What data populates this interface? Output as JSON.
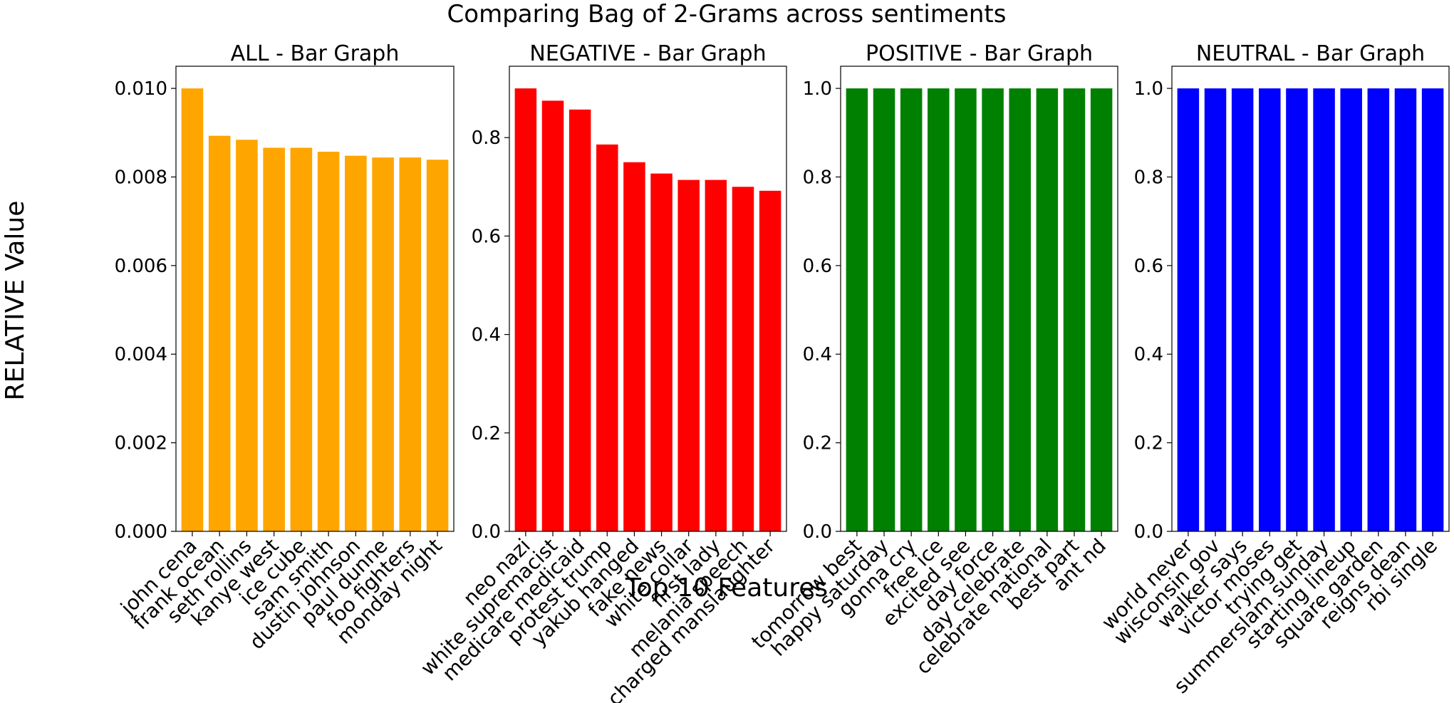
{
  "figure": {
    "suptitle": "Comparing Bag of 2-Grams across sentiments",
    "ylabel": "RELATIVE Value",
    "xlabel": "Top 10 Features"
  },
  "chart_data": [
    {
      "type": "bar",
      "title": "ALL - Bar Graph",
      "color": "#ffa500",
      "categories": [
        "john cena",
        "frank ocean",
        "seth rollins",
        "kanye west",
        "ice cube",
        "sam smith",
        "dustin johnson",
        "paul dunne",
        "foo fighters",
        "monday night"
      ],
      "values": [
        0.01,
        0.00893,
        0.00884,
        0.00866,
        0.00866,
        0.00857,
        0.00848,
        0.00844,
        0.00844,
        0.00839
      ],
      "ylim": [
        0,
        0.0105
      ],
      "yticks": [
        0.0,
        0.002,
        0.004,
        0.006,
        0.008,
        0.01
      ],
      "ytick_labels": [
        "0.000",
        "0.002",
        "0.004",
        "0.006",
        "0.008",
        "0.010"
      ]
    },
    {
      "type": "bar",
      "title": "NEGATIVE - Bar Graph",
      "color": "#ff0000",
      "categories": [
        "neo nazi",
        "white supremacist",
        "medicare medicaid",
        "protest trump",
        "yakub hanged",
        "fake news",
        "white collar",
        "first lady",
        "melania speech",
        "charged manslaughter"
      ],
      "values": [
        0.9,
        0.875,
        0.857,
        0.786,
        0.75,
        0.727,
        0.714,
        0.714,
        0.7,
        0.692
      ],
      "ylim": [
        0,
        0.945
      ],
      "yticks": [
        0.0,
        0.2,
        0.4,
        0.6,
        0.8
      ],
      "ytick_labels": [
        "0.0",
        "0.2",
        "0.4",
        "0.6",
        "0.8"
      ]
    },
    {
      "type": "bar",
      "title": "POSITIVE - Bar Graph",
      "color": "#008000",
      "categories": [
        "tomorrow best",
        "happy saturday",
        "gonna cry",
        "free ice",
        "excited see",
        "day force",
        "day celebrate",
        "celebrate national",
        "best part",
        "ant nd"
      ],
      "values": [
        1.0,
        1.0,
        1.0,
        1.0,
        1.0,
        1.0,
        1.0,
        1.0,
        1.0,
        1.0
      ],
      "ylim": [
        0,
        1.05
      ],
      "yticks": [
        0.0,
        0.2,
        0.4,
        0.6,
        0.8,
        1.0
      ],
      "ytick_labels": [
        "0.0",
        "0.2",
        "0.4",
        "0.6",
        "0.8",
        "1.0"
      ]
    },
    {
      "type": "bar",
      "title": "NEUTRAL - Bar Graph",
      "color": "#0000ff",
      "categories": [
        "world never",
        "wisconsin gov",
        "walker says",
        "victor moses",
        "trying get",
        "summerslam sunday",
        "starting lineup",
        "square garden",
        "reigns dean",
        "rbi single"
      ],
      "values": [
        1.0,
        1.0,
        1.0,
        1.0,
        1.0,
        1.0,
        1.0,
        1.0,
        1.0,
        1.0
      ],
      "ylim": [
        0,
        1.05
      ],
      "yticks": [
        0.0,
        0.2,
        0.4,
        0.6,
        0.8,
        1.0
      ],
      "ytick_labels": [
        "0.0",
        "0.2",
        "0.4",
        "0.6",
        "0.8",
        "1.0"
      ]
    }
  ]
}
